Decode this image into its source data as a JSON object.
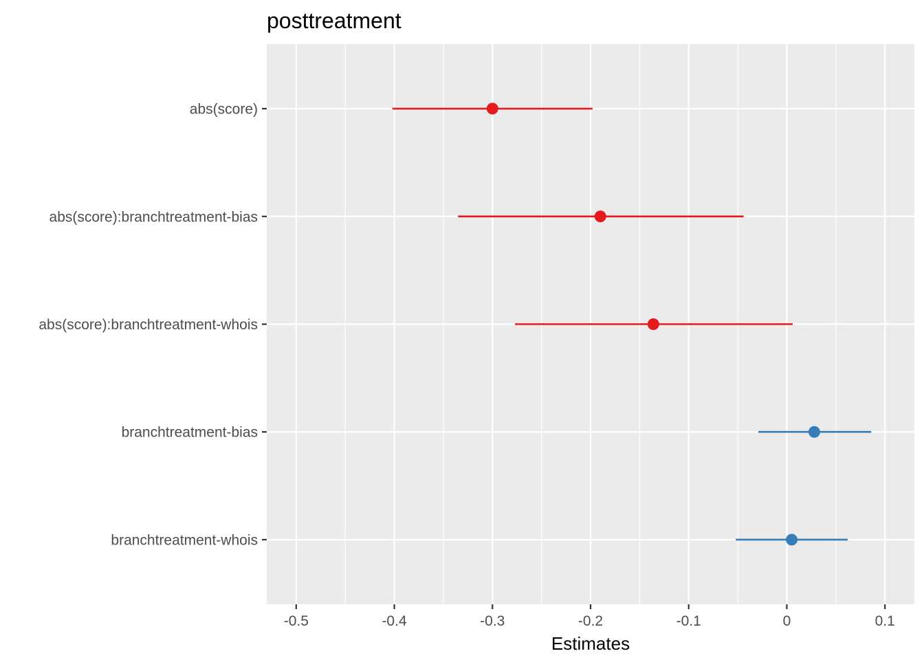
{
  "chart_data": {
    "type": "scatter",
    "subtype": "coefficient-plot",
    "title": "posttreatment",
    "xlabel": "Estimates",
    "ylabel": "",
    "xlim": [
      -0.53,
      0.13
    ],
    "x_ticks": [
      -0.5,
      -0.4,
      -0.3,
      -0.2,
      -0.1,
      0,
      0.1
    ],
    "x_tick_labels": [
      "-0.5",
      "-0.4",
      "-0.3",
      "-0.2",
      "-0.1",
      "0",
      "0.1"
    ],
    "grid": true,
    "legend": "none",
    "colors": {
      "negative": "#e41a1c",
      "positive": "#377eb8",
      "panel": "#ebebeb",
      "grid": "#ffffff"
    },
    "terms": [
      {
        "term": "abs(score)",
        "estimate": -0.3,
        "conf_low": -0.402,
        "conf_high": -0.198,
        "color": "#e41a1c"
      },
      {
        "term": "abs(score):branchtreatment-bias",
        "estimate": -0.19,
        "conf_low": -0.335,
        "conf_high": -0.044,
        "color": "#e41a1c"
      },
      {
        "term": "abs(score):branchtreatment-whois",
        "estimate": -0.136,
        "conf_low": -0.277,
        "conf_high": 0.006,
        "color": "#e41a1c"
      },
      {
        "term": "branchtreatment-bias",
        "estimate": 0.028,
        "conf_low": -0.029,
        "conf_high": 0.086,
        "color": "#377eb8"
      },
      {
        "term": "branchtreatment-whois",
        "estimate": 0.005,
        "conf_low": -0.052,
        "conf_high": 0.062,
        "color": "#377eb8"
      }
    ]
  }
}
